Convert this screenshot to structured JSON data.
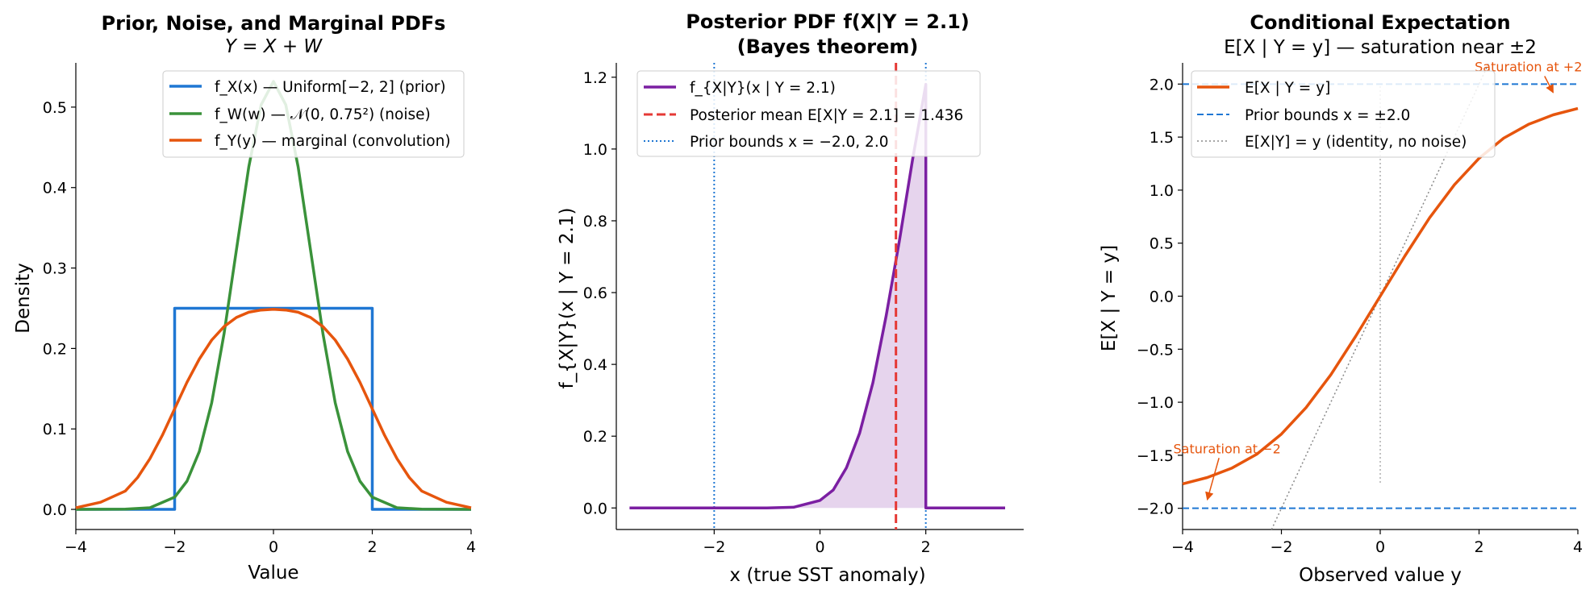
{
  "chart_data": [
    {
      "type": "line",
      "title": "Prior, Noise, and Marginal PDFs",
      "subtitle": "Y = X + W",
      "xlabel": "Value",
      "ylabel": "Density",
      "xlim": [
        -4,
        4
      ],
      "ylim": [
        -0.025,
        0.555
      ],
      "xticks": [
        -4,
        -2,
        0,
        2,
        4
      ],
      "yticks": [
        0.0,
        0.1,
        0.2,
        0.3,
        0.4,
        0.5
      ],
      "xtick_labels": [
        "−4",
        "−2",
        "0",
        "2",
        "4"
      ],
      "ytick_labels": [
        "0.0",
        "0.1",
        "0.2",
        "0.3",
        "0.4",
        "0.5"
      ],
      "legend_position": "upper-right",
      "grid": false,
      "series": [
        {
          "name": "f_X(x) — Uniform[−2, 2] (prior)",
          "color": "#1f77d3",
          "x": [
            -4,
            -2,
            -2,
            2,
            2,
            4
          ],
          "y": [
            0,
            0,
            0.25,
            0.25,
            0,
            0
          ]
        },
        {
          "name": "f_W(w) — 𝒩(0, 0.75²) (noise)",
          "color": "#3a923a",
          "x": [
            -4,
            -3,
            -2.5,
            -2,
            -1.75,
            -1.5,
            -1.25,
            -1,
            -0.75,
            -0.5,
            -0.25,
            0,
            0.25,
            0.5,
            0.75,
            1,
            1.25,
            1.5,
            1.75,
            2,
            2.5,
            3,
            4
          ],
          "y": [
            0,
            0.0002,
            0.002,
            0.0152,
            0.0351,
            0.072,
            0.1323,
            0.2186,
            0.3227,
            0.4257,
            0.5028,
            0.5319,
            0.5028,
            0.4257,
            0.3227,
            0.2186,
            0.1323,
            0.072,
            0.0351,
            0.0152,
            0.002,
            0.0002,
            0
          ]
        },
        {
          "name": "f_Y(y) — marginal (convolution)",
          "color": "#e6550d",
          "x": [
            -4,
            -3.5,
            -3,
            -2.75,
            -2.5,
            -2.25,
            -2,
            -1.75,
            -1.5,
            -1.25,
            -1,
            -0.75,
            -0.5,
            -0.25,
            0,
            0.25,
            0.5,
            0.75,
            1,
            1.25,
            1.5,
            1.75,
            2,
            2.25,
            2.5,
            2.75,
            3,
            3.5,
            4
          ],
          "y": [
            0.0019,
            0.0089,
            0.0228,
            0.0396,
            0.0631,
            0.092,
            0.125,
            0.158,
            0.1869,
            0.2104,
            0.2272,
            0.2386,
            0.2451,
            0.2478,
            0.2488,
            0.2478,
            0.2451,
            0.2386,
            0.2272,
            0.2104,
            0.1869,
            0.158,
            0.125,
            0.092,
            0.0631,
            0.0396,
            0.0228,
            0.0089,
            0.0019
          ]
        }
      ]
    },
    {
      "type": "area",
      "title": "Posterior PDF f(X|Y = 2.1)",
      "subtitle": "(Bayes theorem)",
      "xlabel": "x (true SST anomaly)",
      "ylabel": "f_{X|Y}(x | Y = 2.1)",
      "xlim": [
        -3.85,
        3.85
      ],
      "ylim": [
        -0.06,
        1.24
      ],
      "xticks": [
        -2,
        0,
        2
      ],
      "yticks": [
        0.0,
        0.2,
        0.4,
        0.6,
        0.8,
        1.0,
        1.2
      ],
      "xtick_labels": [
        "−2",
        "0",
        "2"
      ],
      "ytick_labels": [
        "0.0",
        "0.2",
        "0.4",
        "0.6",
        "0.8",
        "1.0",
        "1.2"
      ],
      "legend_position": "upper-left",
      "grid": false,
      "series": [
        {
          "name": "f_{X|Y}(x | Y = 2.1)",
          "color": "#7b1fa2",
          "fill": "#e2cdea",
          "x": [
            -3.6,
            -2,
            -1,
            -0.5,
            0,
            0.25,
            0.5,
            0.75,
            1.0,
            1.25,
            1.5,
            1.75,
            2.0,
            2.0,
            3.5
          ],
          "y": [
            0,
            0,
            0,
            0.002,
            0.021,
            0.05,
            0.112,
            0.209,
            0.349,
            0.535,
            0.744,
            0.971,
            1.18,
            0,
            0
          ]
        }
      ],
      "reference_lines": [
        {
          "name": "Posterior mean E[X|Y = 2.1] = 1.436",
          "x": 1.436,
          "color": "#e53935",
          "style": "dashed"
        },
        {
          "name": "Prior bounds x = −2.0, 2.0",
          "x": [
            -2.0,
            2.0
          ],
          "color": "#1f77d3",
          "style": "dotted"
        }
      ]
    },
    {
      "type": "line",
      "title": "Conditional Expectation",
      "subtitle": "E[X | Y = y] — saturation near ±2",
      "xlabel": "Observed value y",
      "ylabel": "E[X | Y = y]",
      "xlim": [
        -4,
        4
      ],
      "ylim": [
        -2.2,
        2.2
      ],
      "xticks": [
        -4,
        -2,
        0,
        2,
        4
      ],
      "yticks": [
        -2.0,
        -1.5,
        -1.0,
        -0.5,
        0.0,
        0.5,
        1.0,
        1.5,
        2.0
      ],
      "xtick_labels": [
        "−4",
        "−2",
        "0",
        "2",
        "4"
      ],
      "ytick_labels": [
        "−2.0",
        "−1.5",
        "−1.0",
        "−0.5",
        "0.0",
        "0.5",
        "1.0",
        "1.5",
        "2.0"
      ],
      "legend_position": "upper-left",
      "grid": false,
      "series": [
        {
          "name": "E[X | Y = y]",
          "color": "#e6550d",
          "x": [
            -4,
            -3.5,
            -3,
            -2.5,
            -2,
            -1.5,
            -1,
            -0.5,
            0,
            0.5,
            1,
            1.5,
            2,
            2.5,
            3,
            3.5,
            4
          ],
          "y": [
            -1.77,
            -1.71,
            -1.62,
            -1.49,
            -1.3,
            -1.05,
            -0.74,
            -0.38,
            0,
            0.38,
            0.74,
            1.05,
            1.3,
            1.49,
            1.62,
            1.71,
            1.77
          ]
        },
        {
          "name": "Prior bounds x = ±2.0",
          "color": "#1f77d3",
          "style": "dashed",
          "values": [
            -2.0,
            2.0
          ]
        },
        {
          "name": "E[X|Y] = y (identity, no noise)",
          "color": "#888888",
          "style": "dotted",
          "x": [
            -4,
            4
          ],
          "y": [
            -4,
            4
          ]
        }
      ],
      "annotations": [
        {
          "text": "Saturation at +2",
          "color": "#e6550d",
          "point": [
            3.5,
            1.92
          ],
          "text_at": [
            3.0,
            2.12
          ]
        },
        {
          "text": "Saturation at −2",
          "color": "#e6550d",
          "point": [
            -3.5,
            -1.92
          ],
          "text_at": [
            -3.1,
            -1.48
          ]
        }
      ]
    }
  ]
}
